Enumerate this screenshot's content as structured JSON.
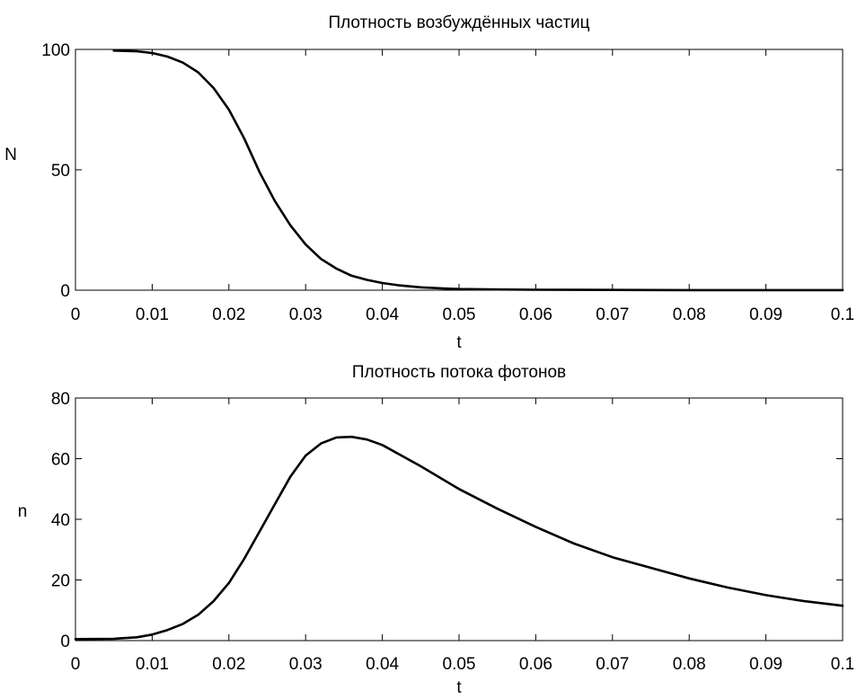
{
  "chart_data": [
    {
      "type": "line",
      "title": "Плотность возбуждённых частиц",
      "xlabel": "t",
      "ylabel": "N",
      "xlim": [
        0,
        0.1
      ],
      "ylim": [
        0,
        100
      ],
      "xticks": [
        "0",
        "0.01",
        "0.02",
        "0.03",
        "0.04",
        "0.05",
        "0.06",
        "0.07",
        "0.08",
        "0.09",
        "0.1"
      ],
      "yticks": [
        "0",
        "50",
        "100"
      ],
      "grid": false,
      "series": [
        {
          "color": "#000000",
          "x": [
            0.005,
            0.008,
            0.01,
            0.012,
            0.014,
            0.016,
            0.018,
            0.02,
            0.022,
            0.024,
            0.026,
            0.028,
            0.03,
            0.032,
            0.034,
            0.036,
            0.038,
            0.04,
            0.042,
            0.045,
            0.048,
            0.05,
            0.055,
            0.06,
            0.07,
            0.08,
            0.09,
            0.1
          ],
          "y": [
            99.5,
            99.2,
            98.5,
            97,
            94.5,
            90.5,
            84,
            75,
            63,
            49,
            37,
            27,
            19,
            13,
            9,
            6,
            4.3,
            3,
            2.1,
            1.2,
            0.7,
            0.5,
            0.3,
            0.2,
            0.1,
            0.05,
            0.03,
            0.02
          ]
        }
      ]
    },
    {
      "type": "line",
      "title": "Плотность потока фотонов",
      "xlabel": "t",
      "ylabel": "n",
      "xlim": [
        0,
        0.1
      ],
      "ylim": [
        0,
        80
      ],
      "xticks": [
        "0",
        "0.01",
        "0.02",
        "0.03",
        "0.04",
        "0.05",
        "0.06",
        "0.07",
        "0.08",
        "0.09",
        "0.1"
      ],
      "yticks": [
        "0",
        "20",
        "40",
        "60",
        "80"
      ],
      "grid": false,
      "series": [
        {
          "color": "#000000",
          "x": [
            0,
            0.005,
            0.008,
            0.01,
            0.012,
            0.014,
            0.016,
            0.018,
            0.02,
            0.022,
            0.024,
            0.026,
            0.028,
            0.03,
            0.032,
            0.034,
            0.036,
            0.038,
            0.04,
            0.045,
            0.05,
            0.055,
            0.06,
            0.065,
            0.07,
            0.075,
            0.08,
            0.085,
            0.09,
            0.095,
            0.1
          ],
          "y": [
            0.5,
            0.6,
            1.1,
            2,
            3.5,
            5.5,
            8.5,
            13,
            19,
            27,
            36,
            45,
            54,
            61,
            65,
            67,
            67.2,
            66.3,
            64.5,
            57.5,
            50,
            43.5,
            37.5,
            32,
            27.5,
            24,
            20.5,
            17.5,
            15,
            13,
            11.5
          ]
        }
      ]
    }
  ]
}
